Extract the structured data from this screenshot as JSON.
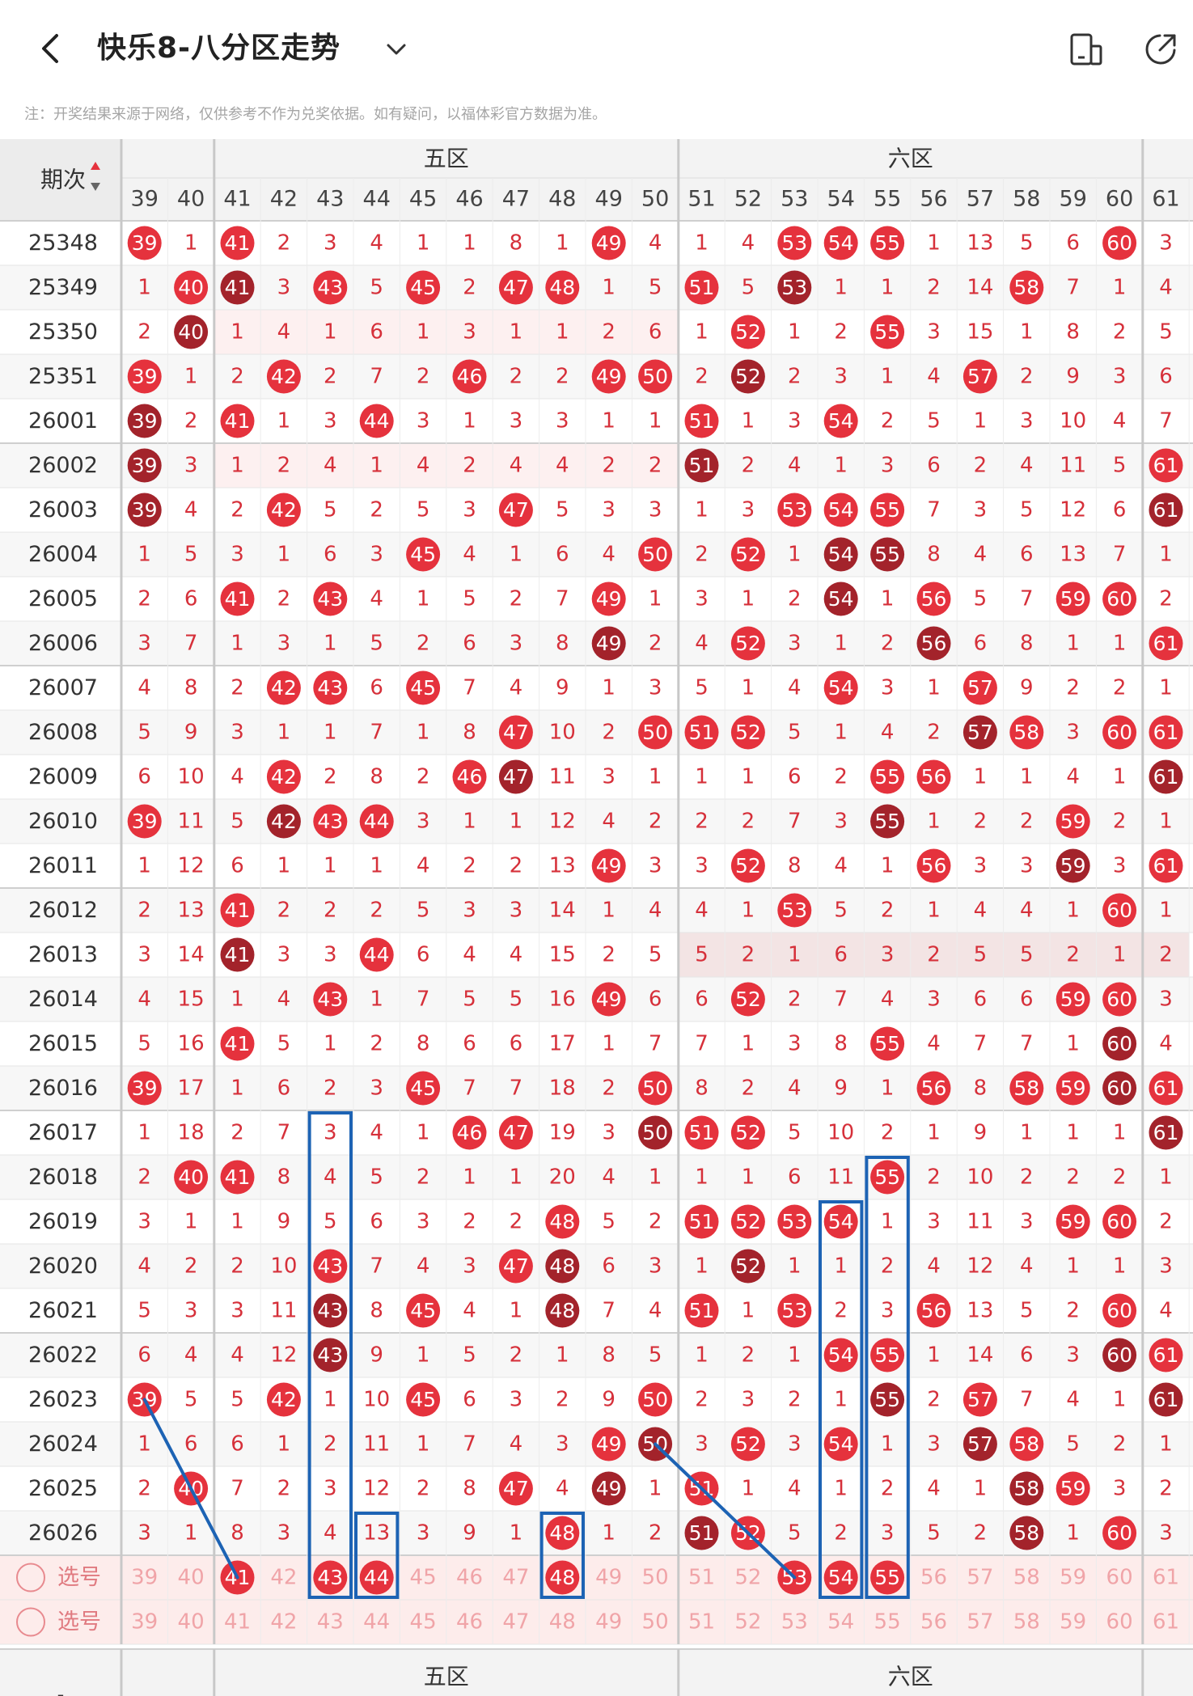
{
  "header": {
    "title": "快乐8-八分区走势",
    "back_icon": "back-arrow-icon",
    "dropdown_icon": "chevron-down-icon",
    "device_icon": "device-icon",
    "share_icon": "share-icon"
  },
  "note": "注：开奖结果来源于网络，仅供参考不作为兑奖依据。如有疑问，以福体彩官方数据为准。",
  "table": {
    "period_header": "期次",
    "sort_icon": "sort-arrows-icon",
    "columns": [
      39,
      40,
      41,
      42,
      43,
      44,
      45,
      46,
      47,
      48,
      49,
      50,
      51,
      52,
      53,
      54,
      55,
      56,
      57,
      58,
      59,
      60,
      61
    ],
    "zones": [
      {
        "label": "五区",
        "from": 41,
        "to": 50
      },
      {
        "label": "六区",
        "from": 51,
        "to": 60
      }
    ],
    "rows": [
      {
        "period": "25348",
        "cells": [
          39,
          1,
          41,
          2,
          3,
          4,
          1,
          1,
          8,
          1,
          49,
          4,
          1,
          4,
          53,
          54,
          55,
          1,
          13,
          5,
          6,
          60,
          3
        ]
      },
      {
        "period": "25349",
        "cells": [
          1,
          40,
          41,
          3,
          43,
          5,
          45,
          2,
          47,
          48,
          1,
          5,
          51,
          5,
          53,
          1,
          1,
          2,
          14,
          58,
          7,
          1,
          4
        ]
      },
      {
        "period": "25350",
        "cells": [
          2,
          40,
          1,
          4,
          1,
          6,
          1,
          3,
          1,
          1,
          2,
          6,
          1,
          52,
          1,
          2,
          55,
          3,
          15,
          1,
          8,
          2,
          5
        ]
      },
      {
        "period": "25351",
        "cells": [
          39,
          1,
          2,
          42,
          2,
          7,
          2,
          46,
          2,
          2,
          49,
          50,
          2,
          52,
          2,
          3,
          1,
          4,
          57,
          2,
          9,
          3,
          6
        ]
      },
      {
        "period": "26001",
        "cells": [
          39,
          2,
          41,
          1,
          3,
          44,
          3,
          1,
          3,
          3,
          1,
          1,
          51,
          1,
          3,
          54,
          2,
          5,
          1,
          3,
          10,
          4,
          7
        ]
      },
      {
        "period": "26002",
        "cells": [
          39,
          3,
          1,
          2,
          4,
          1,
          4,
          2,
          4,
          4,
          2,
          2,
          51,
          2,
          4,
          1,
          3,
          6,
          2,
          4,
          11,
          5,
          61
        ]
      },
      {
        "period": "26003",
        "cells": [
          39,
          4,
          2,
          42,
          5,
          2,
          5,
          3,
          47,
          5,
          3,
          3,
          1,
          3,
          53,
          54,
          55,
          7,
          3,
          5,
          12,
          6,
          61
        ]
      },
      {
        "period": "26004",
        "cells": [
          1,
          5,
          3,
          1,
          6,
          3,
          45,
          4,
          1,
          6,
          4,
          50,
          2,
          52,
          1,
          54,
          55,
          8,
          4,
          6,
          13,
          7,
          1
        ]
      },
      {
        "period": "26005",
        "cells": [
          2,
          6,
          41,
          2,
          43,
          4,
          1,
          5,
          2,
          7,
          49,
          1,
          3,
          1,
          2,
          54,
          1,
          56,
          5,
          7,
          59,
          60,
          2
        ]
      },
      {
        "period": "26006",
        "cells": [
          3,
          7,
          1,
          3,
          1,
          5,
          2,
          6,
          3,
          8,
          49,
          2,
          4,
          52,
          3,
          1,
          2,
          56,
          6,
          8,
          1,
          1,
          61
        ]
      },
      {
        "period": "26007",
        "cells": [
          4,
          8,
          2,
          42,
          43,
          6,
          45,
          7,
          4,
          9,
          1,
          3,
          5,
          1,
          4,
          54,
          3,
          1,
          57,
          9,
          2,
          2,
          1
        ]
      },
      {
        "period": "26008",
        "cells": [
          5,
          9,
          3,
          1,
          1,
          7,
          1,
          8,
          47,
          10,
          2,
          50,
          51,
          52,
          5,
          1,
          4,
          2,
          57,
          58,
          3,
          60,
          61
        ]
      },
      {
        "period": "26009",
        "cells": [
          6,
          10,
          4,
          42,
          2,
          8,
          2,
          46,
          47,
          11,
          3,
          1,
          1,
          1,
          6,
          2,
          55,
          56,
          1,
          1,
          4,
          1,
          61
        ]
      },
      {
        "period": "26010",
        "cells": [
          39,
          11,
          5,
          42,
          43,
          44,
          3,
          1,
          1,
          12,
          4,
          2,
          2,
          2,
          7,
          3,
          55,
          1,
          2,
          2,
          59,
          2,
          1
        ]
      },
      {
        "period": "26011",
        "cells": [
          1,
          12,
          6,
          1,
          1,
          1,
          4,
          2,
          2,
          13,
          49,
          3,
          3,
          52,
          8,
          4,
          1,
          56,
          3,
          3,
          59,
          3,
          61
        ]
      },
      {
        "period": "26012",
        "cells": [
          2,
          13,
          41,
          2,
          2,
          2,
          5,
          3,
          3,
          14,
          1,
          4,
          4,
          1,
          53,
          5,
          2,
          1,
          4,
          4,
          1,
          60,
          1
        ]
      },
      {
        "period": "26013",
        "cells": [
          3,
          14,
          41,
          3,
          3,
          44,
          6,
          4,
          4,
          15,
          2,
          5,
          5,
          2,
          1,
          6,
          3,
          2,
          5,
          5,
          2,
          1,
          2
        ]
      },
      {
        "period": "26014",
        "cells": [
          4,
          15,
          1,
          4,
          43,
          1,
          7,
          5,
          5,
          16,
          49,
          6,
          6,
          52,
          2,
          7,
          4,
          3,
          6,
          6,
          59,
          60,
          3
        ]
      },
      {
        "period": "26015",
        "cells": [
          5,
          16,
          41,
          5,
          1,
          2,
          8,
          6,
          6,
          17,
          1,
          7,
          7,
          1,
          3,
          8,
          55,
          4,
          7,
          7,
          1,
          60,
          4
        ]
      },
      {
        "period": "26016",
        "cells": [
          39,
          17,
          1,
          6,
          2,
          3,
          45,
          7,
          7,
          18,
          2,
          50,
          8,
          2,
          4,
          9,
          1,
          56,
          8,
          58,
          59,
          60,
          61
        ]
      },
      {
        "period": "26017",
        "cells": [
          1,
          18,
          2,
          7,
          3,
          4,
          1,
          46,
          47,
          19,
          3,
          50,
          51,
          52,
          5,
          10,
          2,
          1,
          9,
          1,
          1,
          1,
          61
        ]
      },
      {
        "period": "26018",
        "cells": [
          2,
          40,
          41,
          8,
          4,
          5,
          2,
          1,
          1,
          20,
          4,
          1,
          1,
          1,
          6,
          11,
          55,
          2,
          10,
          2,
          2,
          2,
          1
        ]
      },
      {
        "period": "26019",
        "cells": [
          3,
          1,
          1,
          9,
          5,
          6,
          3,
          2,
          2,
          48,
          5,
          2,
          51,
          52,
          53,
          54,
          1,
          3,
          11,
          3,
          59,
          60,
          2
        ]
      },
      {
        "period": "26020",
        "cells": [
          4,
          2,
          2,
          10,
          43,
          7,
          4,
          3,
          47,
          48,
          6,
          3,
          1,
          52,
          1,
          1,
          2,
          4,
          12,
          4,
          1,
          1,
          3
        ]
      },
      {
        "period": "26021",
        "cells": [
          5,
          3,
          3,
          11,
          43,
          8,
          45,
          4,
          1,
          48,
          7,
          4,
          51,
          1,
          53,
          2,
          3,
          56,
          13,
          5,
          2,
          60,
          4
        ]
      },
      {
        "period": "26022",
        "cells": [
          6,
          4,
          4,
          12,
          43,
          9,
          1,
          5,
          2,
          1,
          8,
          5,
          1,
          2,
          1,
          54,
          55,
          1,
          14,
          6,
          3,
          60,
          61
        ]
      },
      {
        "period": "26023",
        "cells": [
          39,
          5,
          5,
          42,
          1,
          10,
          45,
          6,
          3,
          2,
          9,
          50,
          2,
          3,
          2,
          1,
          55,
          2,
          57,
          7,
          4,
          1,
          61
        ]
      },
      {
        "period": "26024",
        "cells": [
          1,
          6,
          6,
          1,
          2,
          11,
          1,
          7,
          4,
          3,
          49,
          50,
          3,
          52,
          3,
          54,
          1,
          3,
          57,
          58,
          5,
          2,
          1
        ]
      },
      {
        "period": "26025",
        "cells": [
          2,
          40,
          7,
          2,
          3,
          12,
          2,
          8,
          47,
          4,
          49,
          1,
          51,
          1,
          4,
          1,
          2,
          4,
          1,
          58,
          59,
          3,
          2
        ]
      },
      {
        "period": "26026",
        "cells": [
          3,
          1,
          8,
          3,
          4,
          13,
          3,
          9,
          1,
          48,
          1,
          2,
          51,
          52,
          5,
          2,
          3,
          5,
          2,
          58,
          1,
          60,
          3
        ]
      }
    ],
    "select_rows": [
      {
        "label": "选号",
        "selected": [
          41,
          43,
          44,
          48,
          53,
          54,
          55
        ]
      },
      {
        "label": "选号",
        "selected": []
      }
    ],
    "footer_period": "-"
  },
  "colors": {
    "red": "#e5323d",
    "dark_red": "#a3232b",
    "text_red": "#d6303a",
    "select_bg": "#fdeceb",
    "annotation_blue": "#1d63b4"
  }
}
